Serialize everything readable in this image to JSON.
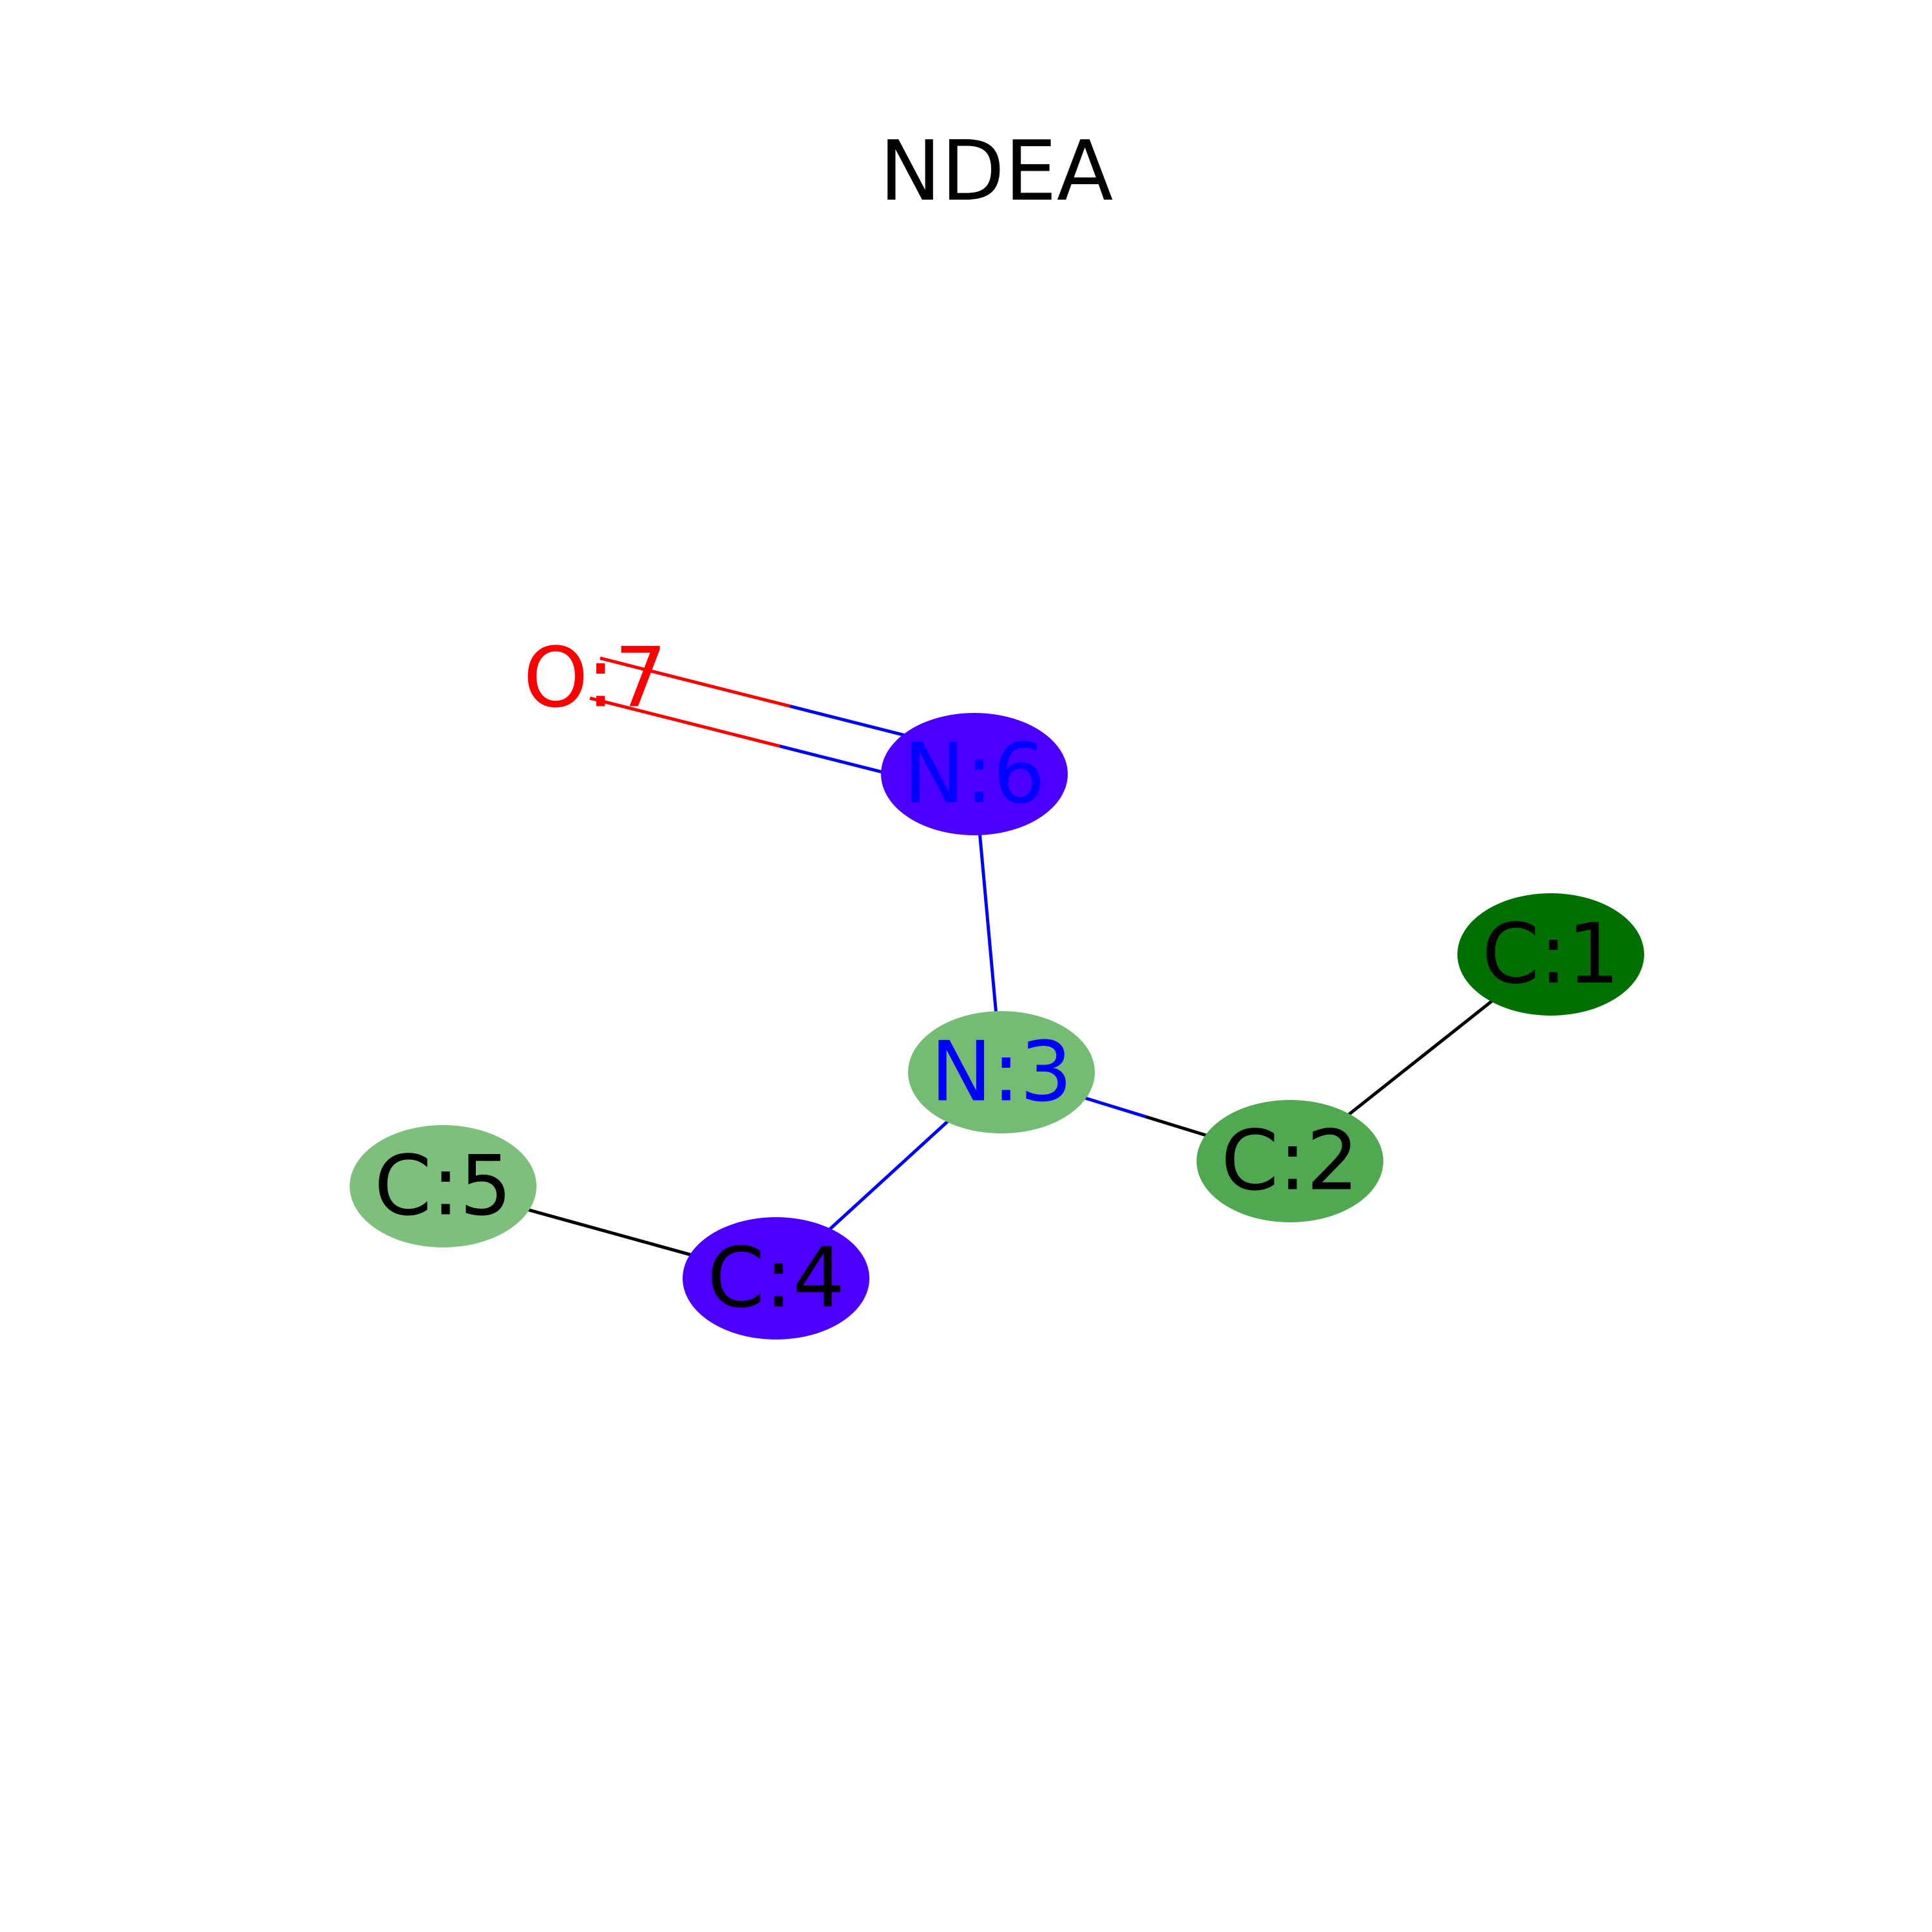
{
  "title": "NDEA",
  "molecule": {
    "atoms": [
      {
        "id": "1",
        "label": "C:1",
        "element": "C",
        "fill": "#007000",
        "text_color": "#000000"
      },
      {
        "id": "2",
        "label": "C:2",
        "element": "C",
        "fill": "#50A850",
        "text_color": "#000000"
      },
      {
        "id": "3",
        "label": "N:3",
        "element": "N",
        "fill": "#74BC74",
        "text_color": "#0000FF"
      },
      {
        "id": "4",
        "label": "C:4",
        "element": "C",
        "fill": "#4B00FF",
        "text_color": "#000000"
      },
      {
        "id": "5",
        "label": "C:5",
        "element": "C",
        "fill": "#7CC07C",
        "text_color": "#000000"
      },
      {
        "id": "6",
        "label": "N:6",
        "element": "N",
        "fill": "#4B00FF",
        "text_color": "#0000FF"
      },
      {
        "id": "7",
        "label": "O:7",
        "element": "O",
        "fill": "none",
        "text_color": "#FF0000"
      }
    ],
    "bonds": [
      {
        "a": "1",
        "b": "2",
        "order": 1,
        "color_a": "#000000",
        "color_b": "#000000"
      },
      {
        "a": "2",
        "b": "3",
        "order": 1,
        "color_a": "#000000",
        "color_b": "#0000FF"
      },
      {
        "a": "3",
        "b": "4",
        "order": 1,
        "color_a": "#0000FF",
        "color_b": "#0000FF"
      },
      {
        "a": "4",
        "b": "5",
        "order": 1,
        "color_a": "#000000",
        "color_b": "#000000"
      },
      {
        "a": "3",
        "b": "6",
        "order": 1,
        "color_a": "#0000FF",
        "color_b": "#0000FF"
      },
      {
        "a": "6",
        "b": "7",
        "order": 2,
        "color_a": "#0000FF",
        "color_b": "#FF0000"
      }
    ]
  }
}
